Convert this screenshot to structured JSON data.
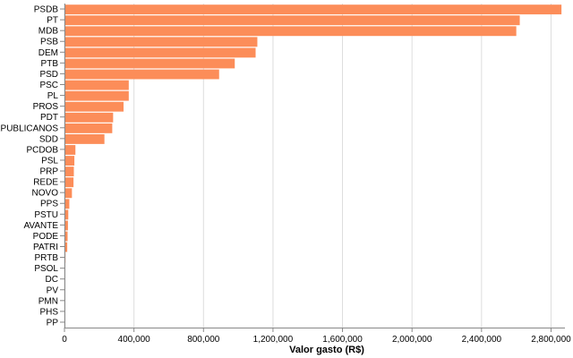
{
  "chart_data": {
    "type": "bar",
    "orientation": "horizontal",
    "title": "",
    "xlabel": "Valor gasto (R$)",
    "ylabel": "",
    "xlim": [
      0,
      2880000
    ],
    "x_ticks": [
      0,
      400000,
      800000,
      1200000,
      1600000,
      2000000,
      2400000,
      2800000
    ],
    "x_tick_labels": [
      "0",
      "400,000",
      "800,000",
      "1,200,000",
      "1,600,000",
      "2,000,000",
      "2,400,000",
      "2,800,000"
    ],
    "grid": true,
    "bar_color": "#fc8d59",
    "categories": [
      "PSDB",
      "PT",
      "MDB",
      "PSB",
      "DEM",
      "PTB",
      "PSD",
      "PSC",
      "PL",
      "PROS",
      "PDT",
      "REPUBLICANOS",
      "SDD",
      "PCDOB",
      "PSL",
      "PRP",
      "REDE",
      "NOVO",
      "PPS",
      "PSTU",
      "AVANTE",
      "PODE",
      "PATRI",
      "PRTB",
      "PSOL",
      "DC",
      "PV",
      "PMN",
      "PHS",
      "PP"
    ],
    "values": [
      2860000,
      2620000,
      2600000,
      1110000,
      1100000,
      980000,
      890000,
      370000,
      370000,
      340000,
      280000,
      275000,
      230000,
      63000,
      57000,
      54000,
      52000,
      43000,
      28000,
      22000,
      20000,
      18000,
      16000,
      6000,
      4000,
      3000,
      2000,
      1000,
      500,
      300
    ]
  }
}
